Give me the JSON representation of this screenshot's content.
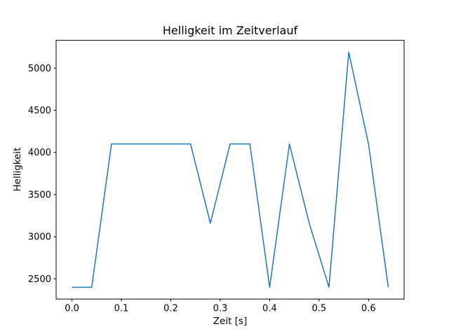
{
  "figure": {
    "title": "Helligkeit im Zeitverlauf",
    "background_color": "#ffffff",
    "text_color": "#000000"
  },
  "chart_data": {
    "type": "line",
    "title": "Helligkeit im Zeitverlauf",
    "xlabel": "Zeit [s]",
    "ylabel": "Helligkeit",
    "x": [
      0.0,
      0.04,
      0.08,
      0.12,
      0.16,
      0.2,
      0.24,
      0.28,
      0.32,
      0.36,
      0.4,
      0.44,
      0.48,
      0.52,
      0.56,
      0.6,
      0.64
    ],
    "series": [
      {
        "name": "Helligkeit",
        "values": [
          2400,
          2400,
          4100,
          4100,
          4100,
          4100,
          4100,
          3160,
          4100,
          4100,
          2400,
          4100,
          3160,
          2400,
          5190,
          4100,
          2400
        ]
      }
    ],
    "line_color": "#1f77b4",
    "line_width": 1.5,
    "marker": "none",
    "grid": false,
    "legend": "none",
    "xlim": [
      -0.032,
      0.672
    ],
    "ylim": [
      2260,
      5330
    ],
    "xtick_labels": [
      "0.0",
      "0.1",
      "0.2",
      "0.3",
      "0.4",
      "0.5",
      "0.6"
    ],
    "xticks": [
      0.0,
      0.1,
      0.2,
      0.3,
      0.4,
      0.5,
      0.6
    ],
    "ytick_labels": [
      "2500",
      "3000",
      "3500",
      "4000",
      "4500",
      "5000"
    ],
    "yticks": [
      2500,
      3000,
      3500,
      4000,
      4500,
      5000
    ],
    "spine_color": "#000000"
  }
}
